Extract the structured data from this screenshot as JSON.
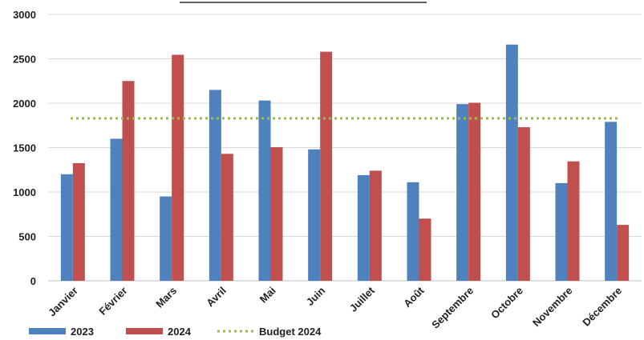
{
  "chart_data": {
    "type": "bar",
    "title": "",
    "xlabel": "",
    "ylabel": "",
    "ylim": [
      0,
      3000
    ],
    "yticks": [
      0,
      500,
      1000,
      1500,
      2000,
      2500,
      3000
    ],
    "grid": true,
    "legend_position": "bottom-left",
    "categories": [
      "Janvier",
      "Février",
      "Mars",
      "Avril",
      "Mai",
      "Juin",
      "Juillet",
      "Août",
      "Septembre",
      "Octobre",
      "Novembre",
      "Décembre"
    ],
    "series": [
      {
        "name": "2023",
        "color": "#4f81bd",
        "values": [
          1200,
          1600,
          950,
          2150,
          2030,
          1480,
          1190,
          1110,
          1990,
          2660,
          1100,
          1790
        ]
      },
      {
        "name": "2024",
        "color": "#c0504d",
        "values": [
          1325,
          2250,
          2545,
          1430,
          1505,
          2580,
          1240,
          700,
          2005,
          1730,
          1345,
          630
        ]
      }
    ],
    "reference_line": {
      "name": "Budget 2024",
      "value": 1830,
      "color": "#9bbb59",
      "style": "dotted"
    }
  }
}
